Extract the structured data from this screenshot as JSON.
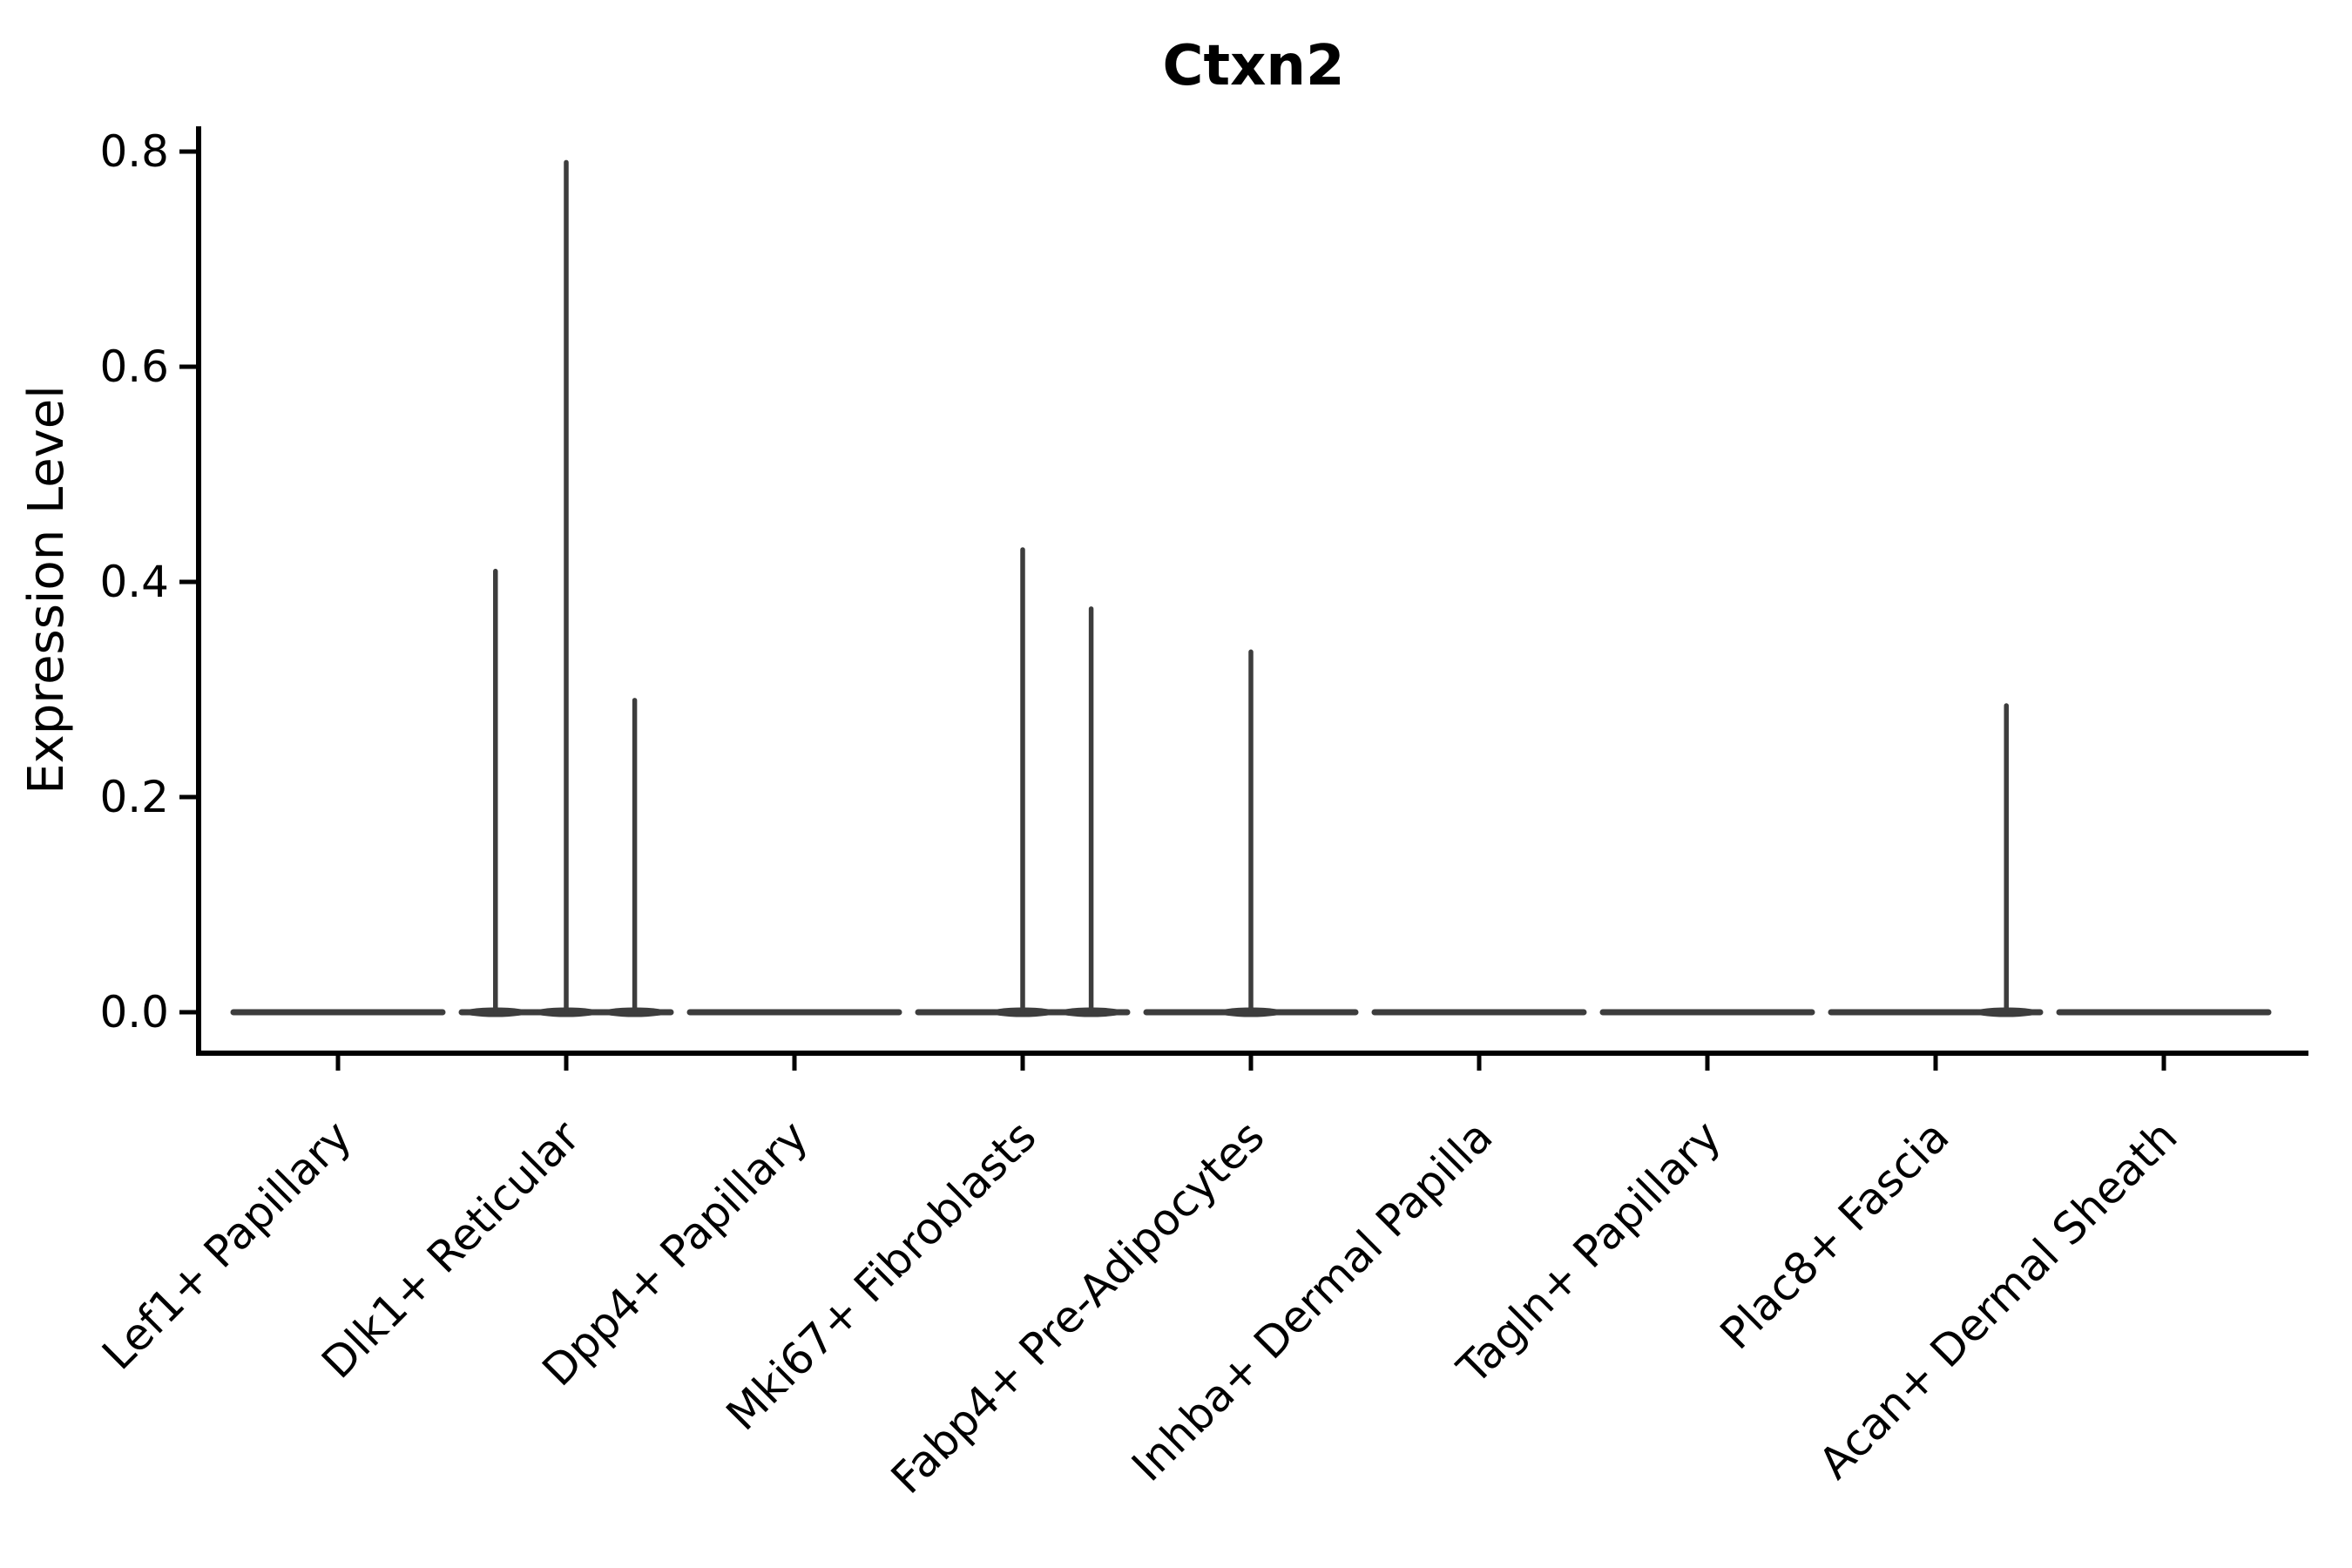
{
  "figure": {
    "title": "Ctxn2",
    "ylabel": "Expression Level"
  },
  "chart_data": {
    "type": "violin",
    "title": "Ctxn2",
    "xlabel": "",
    "ylabel": "Expression Level",
    "ylim": [
      0,
      0.8
    ],
    "yticks": [
      0,
      0.2,
      0.4,
      0.6,
      0.8
    ],
    "grid": false,
    "legend": "none",
    "categories": [
      "Lef1+ Papillary",
      "Dlk1+ Reticular",
      "Dpp4+ Papillary",
      "Mki67+ Fibroblasts",
      "Fabp4+ Pre-Adipocytes",
      "Inhba+ Dermal Papilla",
      "Tagln+ Papillary",
      "Plac8+ Fascia",
      "Acan+ Dermal Sheath"
    ],
    "violins": [
      {
        "category": "Lef1+ Papillary",
        "baseline_value": 0.0,
        "spikes": []
      },
      {
        "category": "Dlk1+ Reticular",
        "baseline_value": 0.0,
        "spikes": [
          {
            "offset": -0.31,
            "value": 0.41
          },
          {
            "offset": 0.0,
            "value": 0.79
          },
          {
            "offset": 0.3,
            "value": 0.29
          }
        ]
      },
      {
        "category": "Dpp4+ Papillary",
        "baseline_value": 0.0,
        "spikes": []
      },
      {
        "category": "Mki67+ Fibroblasts",
        "baseline_value": 0.0,
        "spikes": [
          {
            "offset": 0.0,
            "value": 0.43
          },
          {
            "offset": 0.3,
            "value": 0.375
          }
        ]
      },
      {
        "category": "Fabp4+ Pre-Adipocytes",
        "baseline_value": 0.0,
        "spikes": [
          {
            "offset": 0.0,
            "value": 0.335
          }
        ]
      },
      {
        "category": "Inhba+ Dermal Papilla",
        "baseline_value": 0.0,
        "spikes": []
      },
      {
        "category": "Tagln+ Papillary",
        "baseline_value": 0.0,
        "spikes": []
      },
      {
        "category": "Plac8+ Fascia",
        "baseline_value": 0.0,
        "spikes": [
          {
            "offset": 0.31,
            "value": 0.285
          }
        ]
      },
      {
        "category": "Acan+ Dermal Sheath",
        "baseline_value": 0.0,
        "spikes": []
      }
    ],
    "colors": {
      "violin": "#3d3d3d",
      "axis": "#000000",
      "text": "#000000"
    }
  }
}
